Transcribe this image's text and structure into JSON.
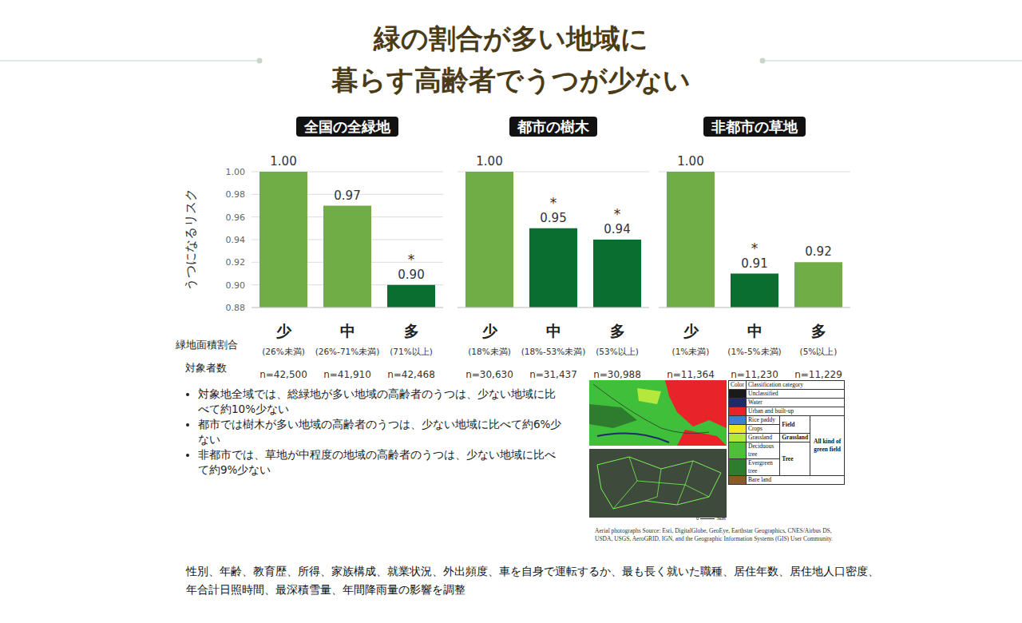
{
  "title": [
    "緑の割合が多い地域に",
    "暮らす高齢者でうつが少ない"
  ],
  "row_labels": [
    "緑地面積割合",
    "対象者数"
  ],
  "chart_data": [
    {
      "type": "bar",
      "title": "全国の全緑地",
      "y_label": "うつになるリスク",
      "categories": [
        "少",
        "中",
        "多"
      ],
      "category_notes": [
        "(26%未満)",
        "(26%-71%未満)",
        "(71%以上)"
      ],
      "n_labels": [
        "n=42,500",
        "n=41,910",
        "n=42,468"
      ],
      "values": [
        1.0,
        0.97,
        0.9
      ],
      "value_labels": [
        "1.00",
        "0.97",
        "0.90"
      ],
      "significance": [
        null,
        null,
        "*"
      ],
      "colors": [
        "#70ad47",
        "#70ad47",
        "#0b6e31"
      ],
      "ylim": [
        0.88,
        1.0
      ],
      "yticks": [
        0.88,
        {
          "value": 0.9,
          "label": "0.90"
        },
        0.92,
        0.94,
        0.96,
        0.98,
        {
          "value": 1.0,
          "label": "1.00"
        }
      ],
      "grid": true,
      "data_labels": true,
      "tick_labels": "y"
    },
    {
      "type": "bar",
      "title": "都市の樹木",
      "categories": [
        "少",
        "中",
        "多"
      ],
      "category_notes": [
        "(18%未満)",
        "(18%-53%未満)",
        "(53%以上)"
      ],
      "n_labels": [
        "n=30,630",
        "n=31,437",
        "n=30,988"
      ],
      "values": [
        1.0,
        0.95,
        0.94
      ],
      "value_labels": [
        "1.00",
        "0.95",
        "0.94"
      ],
      "significance": [
        null,
        "*",
        "*"
      ],
      "colors": [
        "#70ad47",
        "#0b6e31",
        "#0b6e31"
      ],
      "ylim": [
        0.88,
        1.0
      ],
      "yticks": [
        0.88,
        0.9,
        0.92,
        0.94,
        0.96,
        0.98,
        1.0
      ],
      "grid": true,
      "data_labels": true,
      "tick_labels": false
    },
    {
      "type": "bar",
      "title": "非都市の草地",
      "categories": [
        "少",
        "中",
        "多"
      ],
      "category_notes": [
        "(1%未満)",
        "(1%-5%未満)",
        "(5%以上)"
      ],
      "n_labels": [
        "n=11,364",
        "n=11,230",
        "n=11,229"
      ],
      "values": [
        1.0,
        0.91,
        0.92
      ],
      "value_labels": [
        "1.00",
        "0.91",
        "0.92"
      ],
      "significance": [
        null,
        "*",
        null
      ],
      "colors": [
        "#70ad47",
        "#0b6e31",
        "#70ad47"
      ],
      "ylim": [
        0.88,
        1.0
      ],
      "yticks": [
        0.88,
        0.9,
        0.92,
        0.94,
        0.96,
        0.98,
        1.0
      ],
      "grid": true,
      "data_labels": true,
      "tick_labels": false
    }
  ],
  "bullets": [
    "対象地全域では、総緑地が多い地域の高齢者のうつは、少ない地域に比べて約10%少ない",
    "都市では樹木が多い地域の高齢者のうつは、少ない地域に比べて約6%少ない",
    "非都市では、草地が中程度の地域の高齢者のうつは、少ない地域に比べて約9%少ない"
  ],
  "map_legend": {
    "header": [
      "Color",
      "Classification category"
    ],
    "rows": [
      {
        "label": "Unclassified",
        "color": "#1a1a1a"
      },
      {
        "label": "Water",
        "color": "#1f2a6b"
      },
      {
        "label": "Urban and built-up",
        "color": "#e8242a"
      },
      {
        "label": "Rice paddy",
        "color": "#3f7fd0"
      },
      {
        "label": "Crops",
        "color": "#f2e82a"
      },
      {
        "label": "Grassland",
        "color": "#b5e83c"
      },
      {
        "label": "Deciduous tree",
        "color": "#4fbf3a"
      },
      {
        "label": "Evergreen tree",
        "color": "#2e7d2e"
      },
      {
        "label": "Bare land",
        "color": "#8b5a2b"
      }
    ],
    "groups": [
      {
        "label": "Field",
        "rows": [
          3,
          4
        ]
      },
      {
        "label": "Grassland",
        "rows": [
          5
        ]
      },
      {
        "label": "Tree",
        "rows": [
          6,
          7
        ]
      }
    ],
    "all_green": {
      "label": "All kind of green field",
      "rows": [
        3,
        4,
        5,
        6,
        7
      ]
    }
  },
  "scale_bar": [
    "0",
    "3km"
  ],
  "map_source": "Aerial photographs Source: Esri, DigitalGlobe, GeoEye, Earthstar Geographics, CNES/Airbus DS, USDA, USGS, AeroGRID, IGN, and the Geographic Information Systems (GIS) User Community.",
  "footnote": [
    "性別、年齢、教育歴、所得、家族構成、就業状況、外出頻度、車を自身で運転するか、最も長く就いた職種、居住年数、居住地人口密度、",
    "年合計日照時間、最深積雪量、年間降雨量の影響を調整"
  ]
}
